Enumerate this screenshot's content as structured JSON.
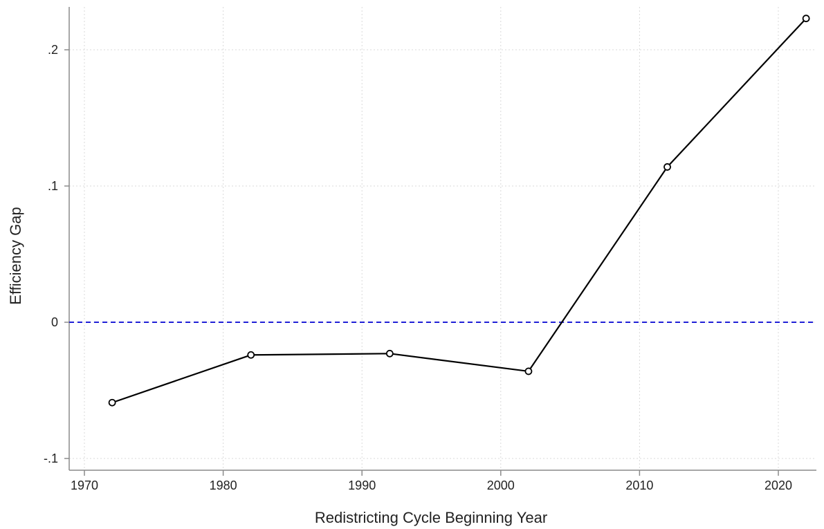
{
  "chart_data": {
    "type": "line",
    "xlabel": "Redistricting Cycle Beginning Year",
    "ylabel": "Efficiency Gap",
    "xlim": [
      1970,
      2023
    ],
    "ylim": [
      -0.1,
      0.2
    ],
    "x_ticks": [
      1970,
      1980,
      1990,
      2000,
      2010,
      2020
    ],
    "x_tick_labels": [
      "1970",
      "1980",
      "1990",
      "2000",
      "2010",
      "2020"
    ],
    "y_ticks": [
      -0.1,
      0,
      0.1,
      0.2
    ],
    "y_tick_labels": [
      "-.1",
      "0",
      ".1",
      ".2"
    ],
    "grid": true,
    "reference_line": {
      "y": 0,
      "style": "dashed",
      "color": "#1f1fd6"
    },
    "series": [
      {
        "x": [
          1972,
          1982,
          1992,
          2002,
          2012,
          2022
        ],
        "y": [
          -0.059,
          -0.024,
          -0.023,
          -0.036,
          0.114,
          0.223
        ],
        "color": "#000000",
        "marker": "hollow-circle"
      }
    ]
  }
}
